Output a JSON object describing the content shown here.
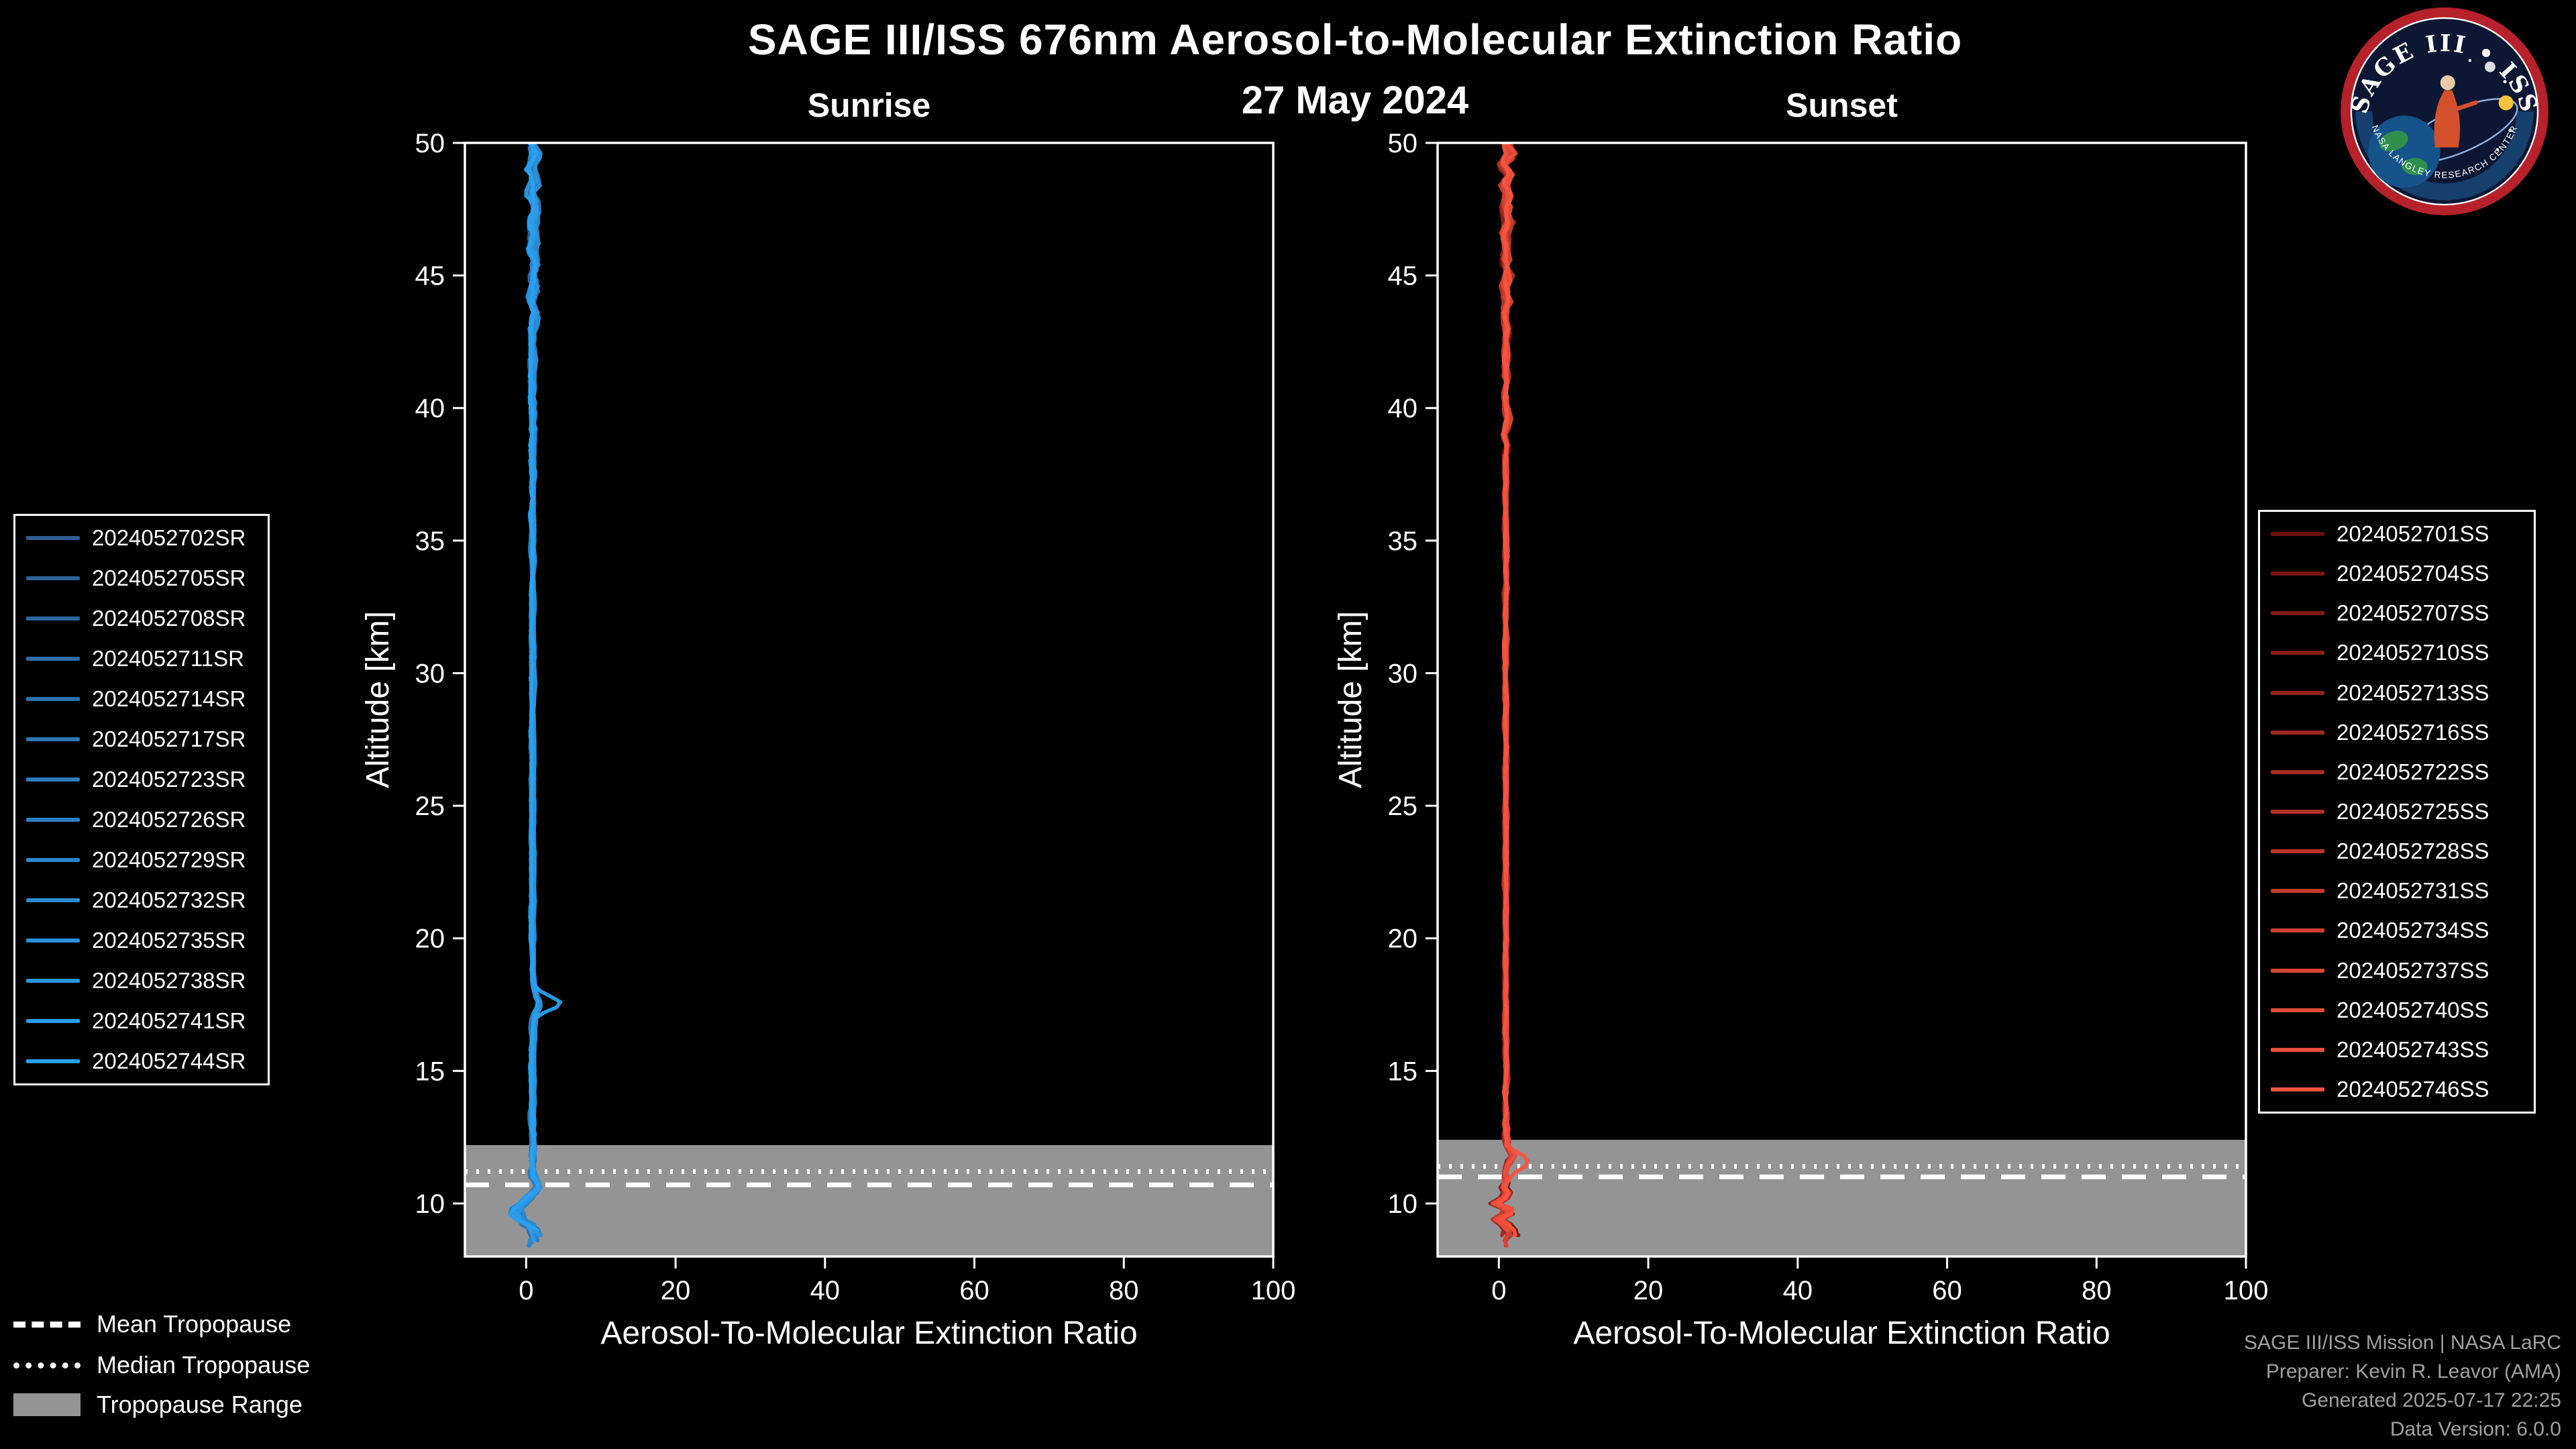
{
  "title": "SAGE III/ISS 676nm Aerosol-to-Molecular Extinction Ratio",
  "date": "27 May 2024",
  "logo": {
    "arc_text": "SAGE III • ISS",
    "ring_text": "NASA LANGLEY RESEARCH CENTER"
  },
  "bottom_legend": {
    "mean": "Mean Tropopause",
    "median": "Median Tropopause",
    "range": "Tropopause Range"
  },
  "attribution": [
    "SAGE III/ISS Mission | NASA LaRC",
    "Preparer: Kevin R. Leavor (AMA)",
    "Generated 2025-07-17 22:25",
    "Data Version: 6.0.0"
  ],
  "chart_data": [
    {
      "type": "line",
      "title": "Sunrise",
      "xlabel": "Aerosol-To-Molecular Extinction Ratio",
      "ylabel": "Altitude [km]",
      "xlim": [
        -8.2,
        100
      ],
      "ylim": [
        8,
        50
      ],
      "xticks": [
        0,
        20,
        40,
        60,
        80,
        100
      ],
      "yticks": [
        10,
        15,
        20,
        25,
        30,
        35,
        40,
        45,
        50
      ],
      "grid": false,
      "legend_position": "outside-left",
      "seed": 11,
      "series": [
        {
          "name": "2024052702SR",
          "color": "#2f5d90"
        },
        {
          "name": "2024052705SR",
          "color": "#2f6297"
        },
        {
          "name": "2024052708SR",
          "color": "#2e679f"
        },
        {
          "name": "2024052711SR",
          "color": "#2e6ca6"
        },
        {
          "name": "2024052714SR",
          "color": "#2d72ad"
        },
        {
          "name": "2024052717SR",
          "color": "#2d77b5"
        },
        {
          "name": "2024052723SR",
          "color": "#2c7cbc"
        },
        {
          "name": "2024052726SR",
          "color": "#2c81c4"
        },
        {
          "name": "2024052729SR",
          "color": "#2b86cb"
        },
        {
          "name": "2024052732SR",
          "color": "#2b8cd2"
        },
        {
          "name": "2024052735SR",
          "color": "#2a91da"
        },
        {
          "name": "2024052738SR",
          "color": "#2a96e1"
        },
        {
          "name": "2024052741SR",
          "color": "#299be9"
        },
        {
          "name": "2024052744SR",
          "color": "#29a0f0"
        }
      ],
      "base_profile": {
        "alt": [
          50,
          49.5,
          49,
          48.5,
          48,
          47.5,
          47,
          46.5,
          46,
          45.5,
          45,
          44.5,
          44,
          43.5,
          43,
          42.5,
          42,
          41,
          40,
          38,
          36,
          34,
          32,
          30,
          28,
          26,
          24,
          22,
          20,
          19,
          18.2,
          17.8,
          17.5,
          17.1,
          16.5,
          15.5,
          14.5,
          13.5,
          12.5,
          12,
          11.5,
          11,
          10.6,
          10.3,
          10,
          9.7,
          9.4,
          9.1,
          8.8,
          8.5,
          8.2
        ],
        "ratio": [
          0.8,
          1.3,
          0.6,
          1.2,
          0.7,
          1.3,
          0.8,
          1.1,
          0.7,
          1.2,
          0.8,
          1.0,
          0.7,
          1.2,
          0.9,
          0.7,
          0.9,
          0.8,
          0.85,
          0.9,
          0.85,
          0.9,
          0.85,
          0.9,
          0.85,
          0.9,
          0.85,
          0.9,
          0.85,
          0.9,
          1.0,
          1.3,
          1.8,
          1.1,
          0.9,
          0.85,
          0.9,
          0.85,
          0.9,
          0.9,
          0.8,
          0.9,
          1.6,
          0.8,
          -0.3,
          -1.5,
          -0.8,
          0.6,
          1.1,
          0.7,
          0.8
        ]
      },
      "noise_amp": {
        "alt": [
          50,
          48,
          46,
          44,
          42,
          40,
          37,
          33,
          28,
          22,
          16,
          13,
          12,
          11,
          10,
          9,
          8.2
        ],
        "amp": [
          1.0,
          0.95,
          0.85,
          0.7,
          0.55,
          0.45,
          0.32,
          0.25,
          0.22,
          0.22,
          0.28,
          0.35,
          0.45,
          0.6,
          0.9,
          1.2,
          1.3
        ]
      },
      "highlight": {
        "series_index": 13,
        "alt": 17.55,
        "extra": 3.2,
        "width": 0.28
      },
      "tropopause": {
        "mean_km": 10.7,
        "median_km": 11.2,
        "range_km": [
          8,
          12.2
        ]
      }
    },
    {
      "type": "line",
      "title": "Sunset",
      "xlabel": "Aerosol-To-Molecular Extinction Ratio",
      "ylabel": "Altitude [km]",
      "xlim": [
        -8.2,
        100
      ],
      "ylim": [
        8,
        50
      ],
      "xticks": [
        0,
        20,
        40,
        60,
        80,
        100
      ],
      "yticks": [
        10,
        15,
        20,
        25,
        30,
        35,
        40,
        45,
        50
      ],
      "grid": false,
      "legend_position": "outside-right",
      "seed": 42,
      "series": [
        {
          "name": "2024052701SS",
          "color": "#6b0f0f"
        },
        {
          "name": "2024052704SS",
          "color": "#751412"
        },
        {
          "name": "2024052707SS",
          "color": "#7f1916"
        },
        {
          "name": "2024052710SS",
          "color": "#891e19"
        },
        {
          "name": "2024052713SS",
          "color": "#93231c"
        },
        {
          "name": "2024052716SS",
          "color": "#9d2820"
        },
        {
          "name": "2024052722SS",
          "color": "#a72d23"
        },
        {
          "name": "2024052725SS",
          "color": "#b13127"
        },
        {
          "name": "2024052728SS",
          "color": "#ba362a"
        },
        {
          "name": "2024052731SS",
          "color": "#c43b2d"
        },
        {
          "name": "2024052734SS",
          "color": "#ce4031"
        },
        {
          "name": "2024052737SS",
          "color": "#d84534"
        },
        {
          "name": "2024052740SS",
          "color": "#e24a38"
        },
        {
          "name": "2024052743SS",
          "color": "#ec4f3b"
        },
        {
          "name": "2024052746SS",
          "color": "#f6543e"
        }
      ],
      "base_profile": {
        "alt": [
          50,
          49.6,
          49.2,
          48.8,
          48.4,
          48,
          47.5,
          47,
          46.5,
          46,
          45.5,
          45,
          44.5,
          44,
          43.5,
          43,
          42.5,
          42,
          41.5,
          41,
          40.5,
          40,
          39.5,
          39,
          38.6,
          38.2,
          37.5,
          36,
          34,
          32,
          30,
          28,
          26,
          24,
          22,
          20,
          18,
          16,
          14.5,
          13.5,
          12.8,
          12.2,
          11.8,
          11.5,
          11.2,
          10.9,
          10.6,
          10.3,
          10,
          9.7,
          9.4,
          9.1,
          8.8,
          8.5,
          8.2
        ],
        "ratio": [
          0.9,
          1.5,
          0.5,
          1.3,
          0.7,
          1.1,
          0.8,
          1.2,
          0.7,
          1.1,
          0.8,
          1.2,
          0.7,
          1.0,
          0.8,
          1.1,
          0.8,
          1.0,
          0.8,
          1.1,
          0.8,
          0.9,
          1.2,
          0.7,
          1.1,
          0.8,
          0.9,
          0.85,
          0.9,
          0.85,
          0.85,
          0.9,
          0.85,
          0.9,
          0.85,
          0.9,
          0.85,
          0.9,
          0.85,
          0.9,
          0.9,
          1.0,
          1.8,
          1.2,
          0.8,
          1.0,
          0.6,
          1.4,
          -0.5,
          1.8,
          -0.3,
          1.2,
          1.6,
          0.8,
          0.9
        ]
      },
      "noise_amp": {
        "alt": [
          50,
          48,
          46,
          44,
          42,
          40,
          37,
          33,
          28,
          22,
          16,
          13,
          12,
          11,
          10,
          9,
          8.2
        ],
        "amp": [
          1.0,
          0.95,
          0.85,
          0.7,
          0.55,
          0.45,
          0.32,
          0.25,
          0.22,
          0.22,
          0.28,
          0.35,
          0.45,
          0.6,
          0.9,
          1.2,
          1.3
        ]
      },
      "highlight": {
        "series_index": 14,
        "alt": 11.5,
        "extra": 2.3,
        "width": 0.3
      },
      "tropopause": {
        "mean_km": 11.0,
        "median_km": 11.4,
        "range_km": [
          8,
          12.4
        ]
      }
    }
  ]
}
